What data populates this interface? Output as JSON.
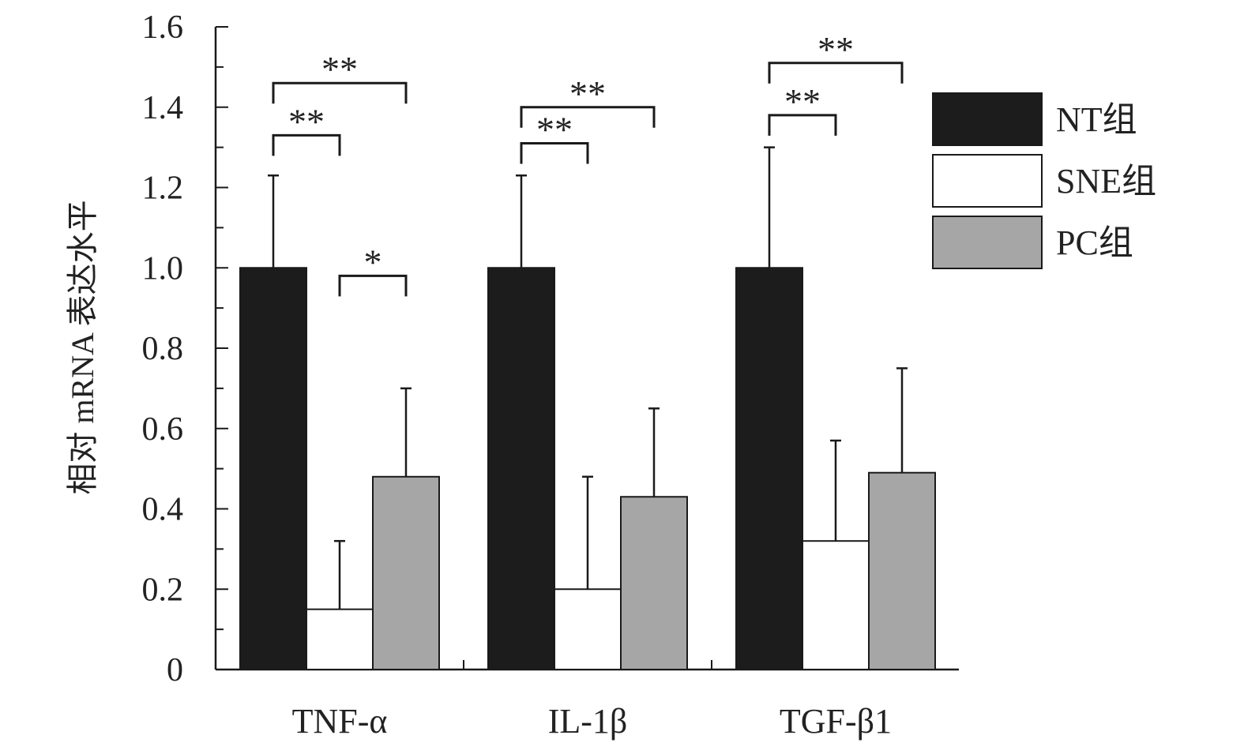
{
  "chart_data": {
    "type": "bar",
    "ylabel": "相对 mRNA 表达水平",
    "ylim": [
      0,
      1.6
    ],
    "yticks": [
      "0",
      "0.2",
      "0.4",
      "0.6",
      "0.8",
      "1.0",
      "1.2",
      "1.4",
      "1.6"
    ],
    "categories": [
      "TNF-α",
      "IL-1β",
      "TGF-β1"
    ],
    "series": [
      {
        "name": "NT组",
        "color": "#1c1c1c",
        "values": [
          1.0,
          1.0,
          1.0
        ],
        "errors": [
          0.23,
          0.23,
          0.3
        ]
      },
      {
        "name": "SNE组",
        "color": "#ffffff",
        "values": [
          0.15,
          0.2,
          0.32
        ],
        "errors": [
          0.17,
          0.28,
          0.25
        ]
      },
      {
        "name": "PC组",
        "color": "#a6a6a6",
        "values": [
          0.48,
          0.43,
          0.49
        ],
        "errors": [
          0.22,
          0.22,
          0.26
        ]
      }
    ],
    "significance": [
      {
        "category": 0,
        "from": 0,
        "to": 2,
        "y": 1.46,
        "label": "**"
      },
      {
        "category": 0,
        "from": 0,
        "to": 1,
        "y": 1.33,
        "label": "**"
      },
      {
        "category": 0,
        "from": 1,
        "to": 2,
        "y": 0.98,
        "label": "*"
      },
      {
        "category": 1,
        "from": 0,
        "to": 2,
        "y": 1.4,
        "label": "**"
      },
      {
        "category": 1,
        "from": 0,
        "to": 1,
        "y": 1.31,
        "label": "**"
      },
      {
        "category": 2,
        "from": 0,
        "to": 2,
        "y": 1.51,
        "label": "**"
      },
      {
        "category": 2,
        "from": 0,
        "to": 1,
        "y": 1.38,
        "label": "**"
      }
    ],
    "legend_position": "right",
    "grid": false
  }
}
